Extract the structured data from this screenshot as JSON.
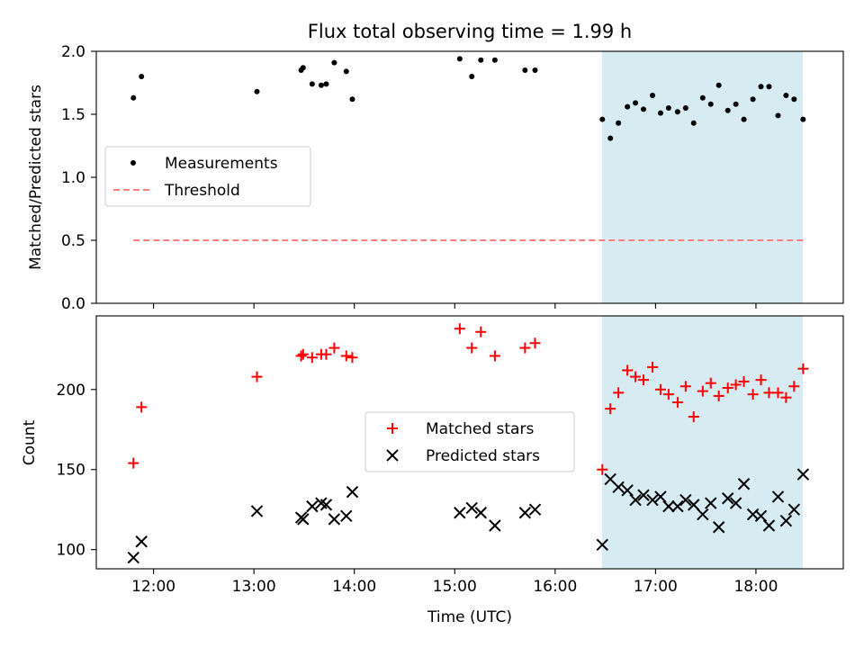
{
  "chart_data": [
    {
      "type": "scatter",
      "title": "Flux total observing time = 1.99 h",
      "xlabel": "",
      "ylabel": "Matched/Predicted stars",
      "ylim": [
        0,
        2.0
      ],
      "yticks": [
        0.0,
        0.5,
        1.0,
        1.5,
        2.0
      ],
      "ytick_labels": [
        "0.0",
        "0.5",
        "1.0",
        "1.5",
        "2.0"
      ],
      "xlim_hours": [
        11.43,
        18.87
      ],
      "xticks_hours": [
        12,
        13,
        14,
        15,
        16,
        17,
        18
      ],
      "xtick_labels": [],
      "shaded_region_hours": [
        16.467,
        18.467
      ],
      "shade_color": "#add8e6",
      "legend_loc": "center-left",
      "series": [
        {
          "name": "Measurements",
          "marker": "dot",
          "color": "#000000",
          "x": [
            11.8,
            11.88,
            13.03,
            13.47,
            13.49,
            13.58,
            13.67,
            13.72,
            13.8,
            13.92,
            13.98,
            15.05,
            15.17,
            15.26,
            15.4,
            15.7,
            15.8,
            16.47,
            16.55,
            16.63,
            16.72,
            16.8,
            16.88,
            16.97,
            17.05,
            17.13,
            17.22,
            17.3,
            17.38,
            17.47,
            17.55,
            17.63,
            17.72,
            17.8,
            17.88,
            17.97,
            18.05,
            18.13,
            18.22,
            18.3,
            18.38,
            18.47
          ],
          "y": [
            1.63,
            1.8,
            1.68,
            1.85,
            1.87,
            1.74,
            1.73,
            1.74,
            1.91,
            1.84,
            1.62,
            1.94,
            1.8,
            1.93,
            1.93,
            1.85,
            1.85,
            1.46,
            1.31,
            1.43,
            1.56,
            1.59,
            1.54,
            1.65,
            1.51,
            1.55,
            1.52,
            1.55,
            1.43,
            1.63,
            1.58,
            1.73,
            1.53,
            1.58,
            1.46,
            1.62,
            1.72,
            1.72,
            1.49,
            1.65,
            1.62,
            1.46
          ]
        },
        {
          "name": "Threshold",
          "marker": "dashed-line",
          "color": "#ff7f7f",
          "x": [
            11.8,
            18.47
          ],
          "y": [
            0.5,
            0.5
          ]
        }
      ]
    },
    {
      "type": "scatter",
      "title": "",
      "xlabel": "Time (UTC)",
      "ylabel": "Count",
      "ylim": [
        88,
        246
      ],
      "yticks": [
        100,
        150,
        200
      ],
      "ytick_labels": [
        "100",
        "150",
        "200"
      ],
      "xlim_hours": [
        11.43,
        18.87
      ],
      "xticks_hours": [
        12,
        13,
        14,
        15,
        16,
        17,
        18
      ],
      "xtick_labels": [
        "12:00",
        "13:00",
        "14:00",
        "15:00",
        "16:00",
        "17:00",
        "18:00"
      ],
      "shaded_region_hours": [
        16.467,
        18.467
      ],
      "shade_color": "#add8e6",
      "legend_loc": "center",
      "series": [
        {
          "name": "Matched stars",
          "marker": "plus",
          "color": "#ff0000",
          "x": [
            11.8,
            11.88,
            13.03,
            13.47,
            13.49,
            13.58,
            13.67,
            13.72,
            13.8,
            13.92,
            13.98,
            15.05,
            15.17,
            15.26,
            15.4,
            15.7,
            15.8,
            16.47,
            16.55,
            16.63,
            16.72,
            16.8,
            16.88,
            16.97,
            17.05,
            17.13,
            17.22,
            17.3,
            17.38,
            17.47,
            17.55,
            17.63,
            17.72,
            17.8,
            17.88,
            17.97,
            18.05,
            18.13,
            18.22,
            18.3,
            18.38,
            18.47
          ],
          "y": [
            154,
            189,
            208,
            221,
            222,
            220,
            222,
            222,
            226,
            221,
            220,
            238,
            226,
            236,
            221,
            226,
            229,
            150,
            188,
            198,
            212,
            208,
            206,
            214,
            200,
            197,
            192,
            202,
            183,
            199,
            204,
            196,
            201,
            203,
            205,
            197,
            206,
            198,
            198,
            195,
            202,
            213
          ]
        },
        {
          "name": "Predicted stars",
          "marker": "x",
          "color": "#000000",
          "x": [
            11.8,
            11.88,
            13.03,
            13.47,
            13.49,
            13.58,
            13.67,
            13.72,
            13.8,
            13.92,
            13.98,
            15.05,
            15.17,
            15.26,
            15.4,
            15.7,
            15.8,
            16.47,
            16.55,
            16.63,
            16.72,
            16.8,
            16.88,
            16.97,
            17.05,
            17.13,
            17.22,
            17.3,
            17.38,
            17.47,
            17.55,
            17.63,
            17.72,
            17.8,
            17.88,
            17.97,
            18.05,
            18.13,
            18.22,
            18.3,
            18.38,
            18.47
          ],
          "y": [
            95,
            105,
            124,
            120,
            119,
            127,
            129,
            128,
            119,
            121,
            136,
            123,
            126,
            123,
            115,
            123,
            125,
            103,
            144,
            139,
            137,
            131,
            134,
            131,
            133,
            127,
            127,
            131,
            128,
            122,
            129,
            114,
            132,
            129,
            141,
            122,
            121,
            115,
            133,
            118,
            125,
            147
          ]
        }
      ]
    }
  ]
}
